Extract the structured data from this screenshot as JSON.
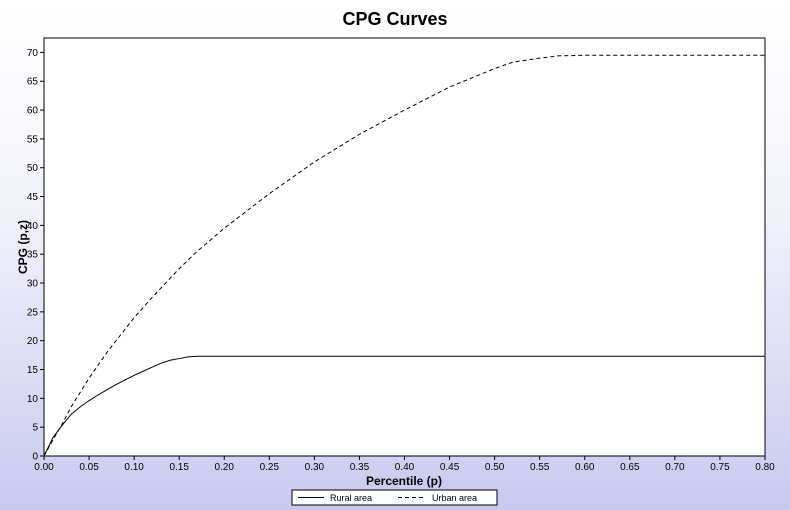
{
  "chart_data": {
    "type": "line",
    "title": "CPG Curves",
    "xlabel": "Percentile (p)",
    "ylabel": "CPG (p,z)",
    "xlim": [
      0,
      0.8
    ],
    "ylim": [
      0,
      72.5
    ],
    "x_ticks": [
      "0.00",
      "0.05",
      "0.10",
      "0.15",
      "0.20",
      "0.25",
      "0.30",
      "0.35",
      "0.40",
      "0.45",
      "0.50",
      "0.55",
      "0.60",
      "0.65",
      "0.70",
      "0.75",
      "0.80"
    ],
    "y_ticks": [
      "0",
      "5",
      "10",
      "15",
      "20",
      "25",
      "30",
      "35",
      "40",
      "45",
      "50",
      "55",
      "60",
      "65",
      "70"
    ],
    "grid": false,
    "legend_position": "bottom-center",
    "series": [
      {
        "name": "Rural area",
        "style": "solid",
        "color": "#000000",
        "points": [
          [
            0,
            0
          ],
          [
            0.01,
            3.2
          ],
          [
            0.02,
            5.3
          ],
          [
            0.03,
            7.2
          ],
          [
            0.04,
            8.5
          ],
          [
            0.05,
            9.6
          ],
          [
            0.06,
            10.6
          ],
          [
            0.07,
            11.5
          ],
          [
            0.08,
            12.4
          ],
          [
            0.09,
            13.2
          ],
          [
            0.1,
            14.0
          ],
          [
            0.11,
            14.7
          ],
          [
            0.12,
            15.4
          ],
          [
            0.13,
            16.1
          ],
          [
            0.14,
            16.6
          ],
          [
            0.15,
            16.9
          ],
          [
            0.16,
            17.2
          ],
          [
            0.17,
            17.3
          ],
          [
            0.2,
            17.3
          ],
          [
            0.4,
            17.3
          ],
          [
            0.6,
            17.3
          ],
          [
            0.8,
            17.3
          ]
        ]
      },
      {
        "name": "Urban area",
        "style": "dashed",
        "color": "#000000",
        "points": [
          [
            0,
            0
          ],
          [
            0.01,
            2.8
          ],
          [
            0.02,
            5.5
          ],
          [
            0.03,
            8.5
          ],
          [
            0.05,
            13.5
          ],
          [
            0.07,
            18
          ],
          [
            0.1,
            24
          ],
          [
            0.12,
            27.5
          ],
          [
            0.15,
            32.5
          ],
          [
            0.17,
            35.5
          ],
          [
            0.2,
            39.5
          ],
          [
            0.25,
            45.5
          ],
          [
            0.3,
            51
          ],
          [
            0.35,
            55.8
          ],
          [
            0.4,
            60
          ],
          [
            0.45,
            64
          ],
          [
            0.5,
            67.2
          ],
          [
            0.52,
            68.3
          ],
          [
            0.55,
            69
          ],
          [
            0.57,
            69.4
          ],
          [
            0.6,
            69.5
          ],
          [
            0.7,
            69.5
          ],
          [
            0.8,
            69.5
          ]
        ]
      }
    ]
  }
}
